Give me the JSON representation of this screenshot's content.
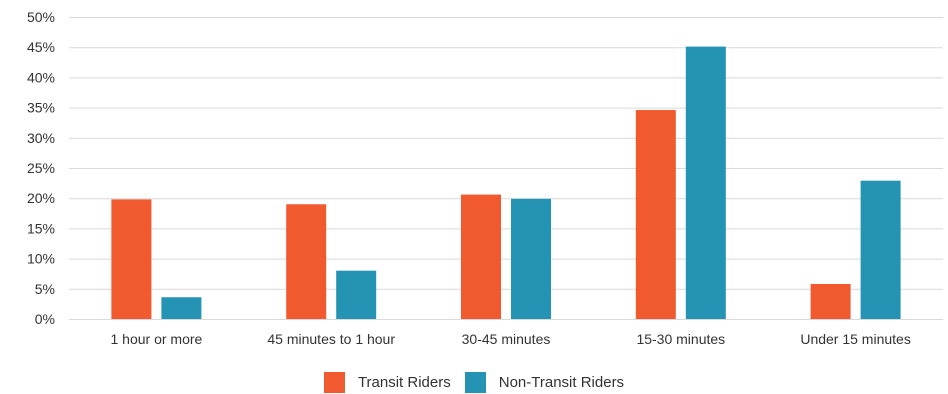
{
  "chart_data": {
    "type": "bar",
    "categories": [
      "1 hour or more",
      "45 minutes to 1 hour",
      "30-45 minutes",
      "15-30 minutes",
      "Under 15 minutes"
    ],
    "series": [
      {
        "name": "Transit Riders",
        "color": "#f15a2f",
        "values": [
          19.8,
          19.0,
          20.6,
          34.6,
          5.8
        ]
      },
      {
        "name": "Non-Transit Riders",
        "color": "#2593b3",
        "values": [
          3.6,
          8.0,
          19.9,
          45.1,
          22.9
        ]
      }
    ],
    "ylim": [
      0,
      50
    ],
    "yticks": [
      "0%",
      "5%",
      "10%",
      "15%",
      "20%",
      "25%",
      "30%",
      "35%",
      "40%",
      "45%",
      "50%"
    ],
    "ytick_values": [
      0,
      5,
      10,
      15,
      20,
      25,
      30,
      35,
      40,
      45,
      50
    ],
    "grid": true,
    "legend_position": "bottom-center",
    "xlabel": "",
    "ylabel": ""
  }
}
